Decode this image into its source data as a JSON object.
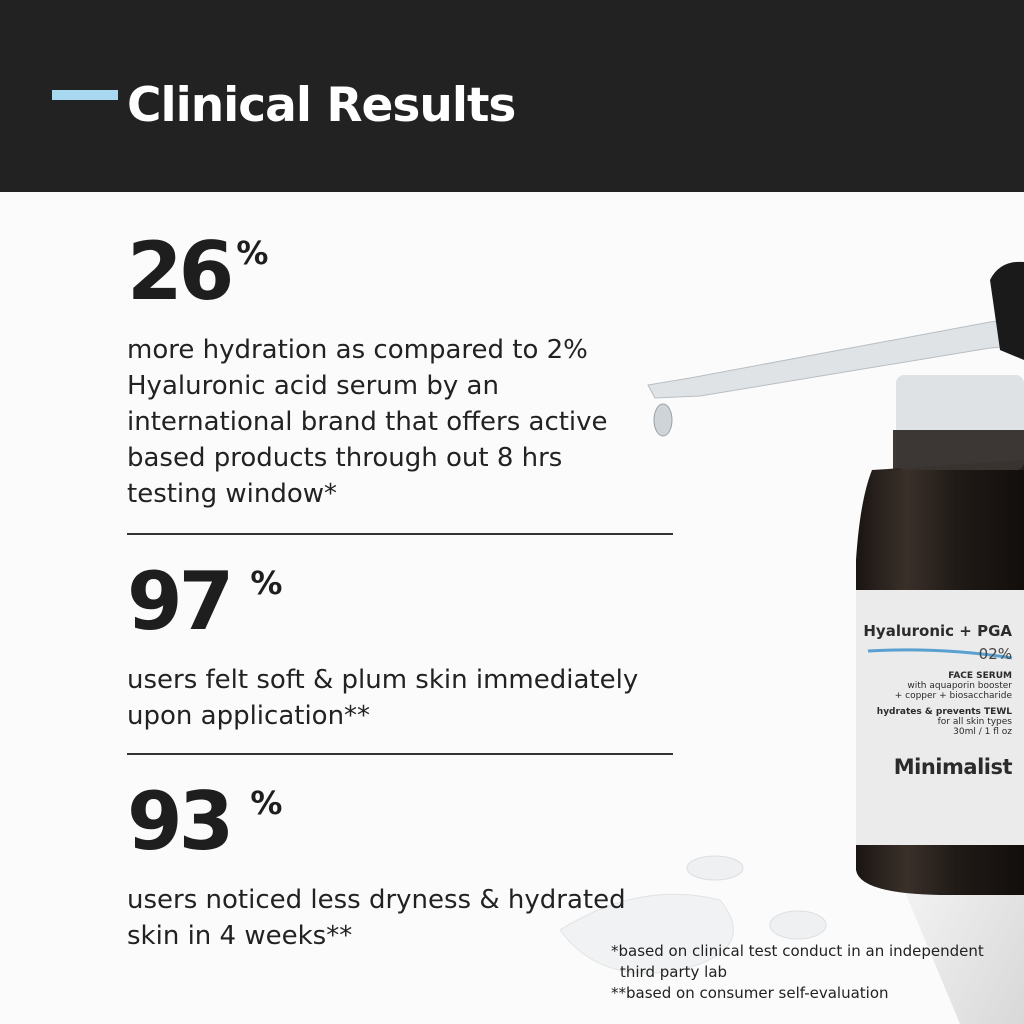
{
  "header": {
    "title": "Clinical Results",
    "accent_color": "#a8d8f0",
    "background": "#222222"
  },
  "stats": [
    {
      "value": "26",
      "unit": "%",
      "description": "more hydration as compared to 2%\nHyaluronic acid serum by an\ninternational brand that offers active\nbased products through out 8 hrs\ntesting window*"
    },
    {
      "value": "97",
      "unit": "%",
      "description": "users felt soft & plum skin immediately\nupon application**"
    },
    {
      "value": "93",
      "unit": "%",
      "description": "users noticed less dryness & hydrated\nskin in 4 weeks**"
    }
  ],
  "footnotes": [
    "*based on clinical test conduct in an independent",
    "third party lab",
    "**based on consumer self-evaluation"
  ],
  "product": {
    "name": "Hyaluronic + PGA",
    "strength": "02%",
    "type": "FACE SERUM",
    "ingredients_1": "with aquaporin booster",
    "ingredients_2": "+ copper + biosaccharide",
    "benefit": "hydrates & prevents TEWL",
    "skin": "for all skin types",
    "volume": "30ml / 1 fl oz",
    "brand": "Minimalist",
    "label_accent": "#5aa0d0"
  }
}
